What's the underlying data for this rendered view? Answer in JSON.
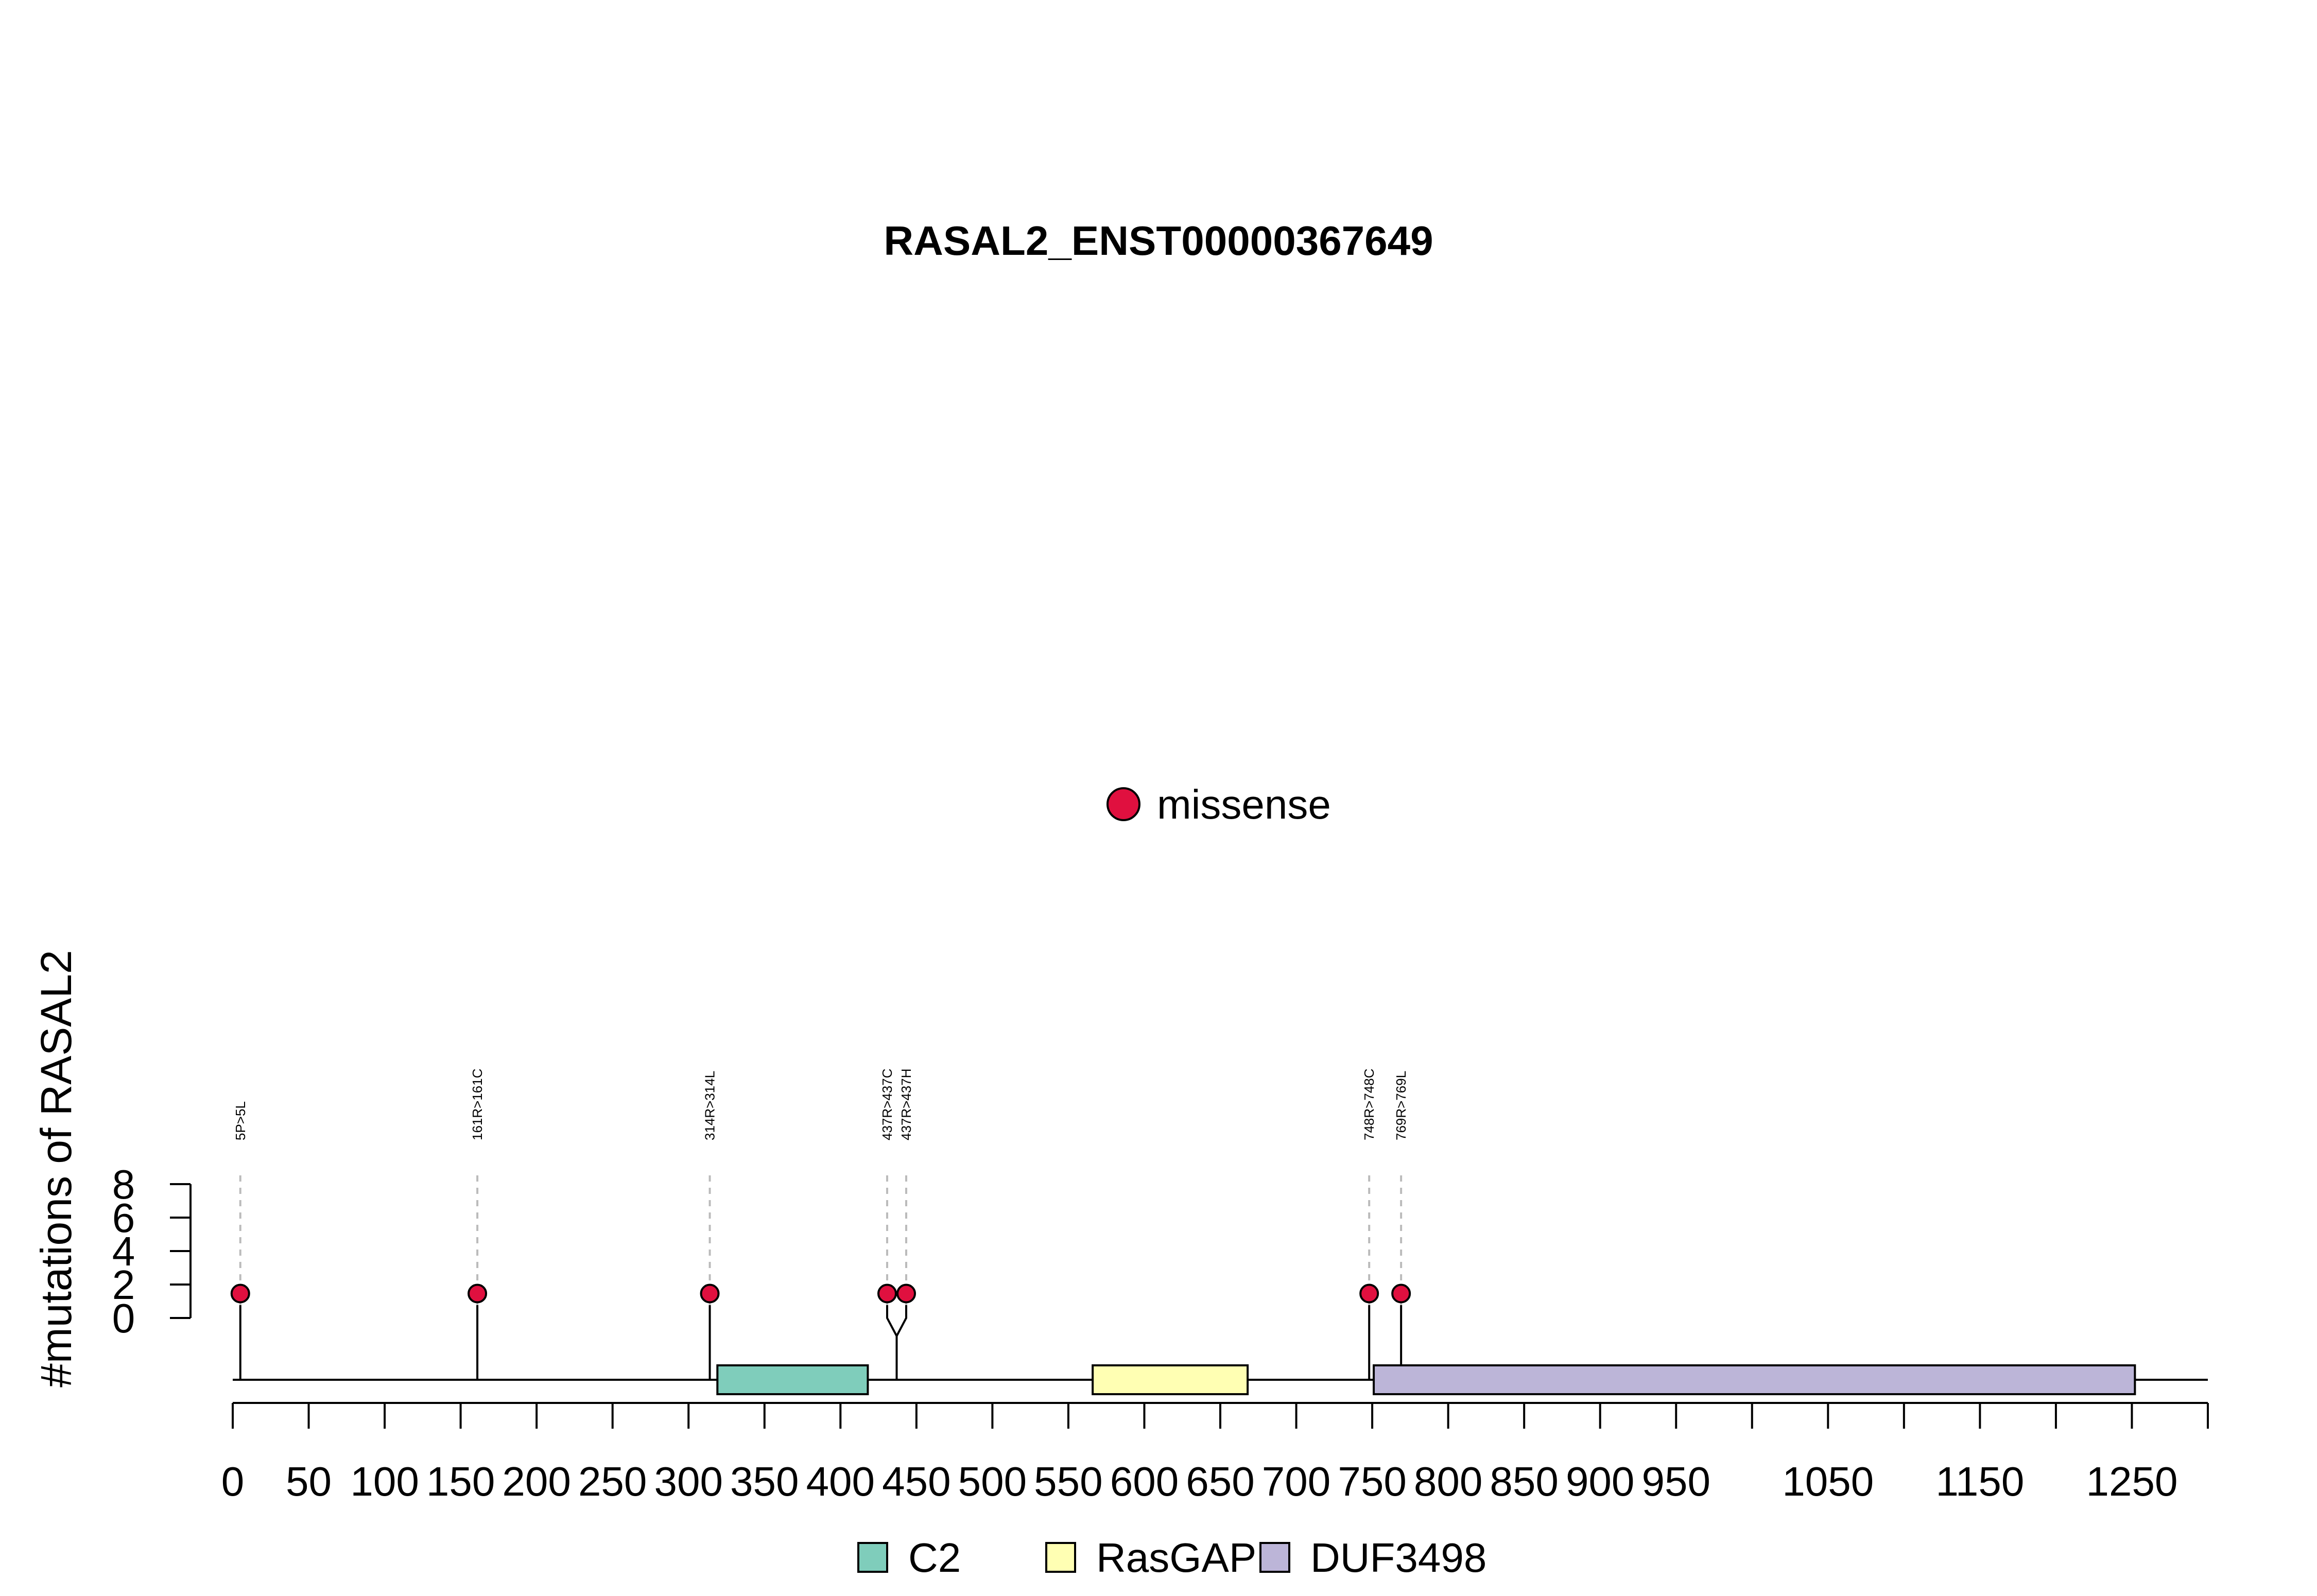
{
  "chart_data": {
    "type": "lollipop",
    "title": "RASAL2_ENST00000367649",
    "ylabel": "#mutations of RASAL2",
    "protein_length": 1300,
    "x_ticks": [
      0,
      50,
      100,
      150,
      200,
      250,
      300,
      350,
      400,
      450,
      500,
      550,
      600,
      650,
      700,
      750,
      800,
      850,
      900,
      950,
      1000,
      1050,
      1100,
      1150,
      1200,
      1250,
      1300
    ],
    "x_tick_labels": [
      "0",
      "50",
      "100",
      "150",
      "200",
      "250",
      "300",
      "350",
      "400",
      "450",
      "500",
      "550",
      "600",
      "650",
      "700",
      "750",
      "800",
      "850",
      "900",
      "950",
      "",
      "1050",
      "",
      "1150",
      "",
      "1250",
      ""
    ],
    "y_ticks": [
      "0",
      "2",
      "4",
      "6",
      "8"
    ],
    "ylim": [
      0,
      8
    ],
    "mutations": [
      {
        "position": 5,
        "count": 1,
        "label": "5P>5L",
        "type": "missense"
      },
      {
        "position": 161,
        "count": 1,
        "label": "161R>161C",
        "type": "missense"
      },
      {
        "position": 314,
        "count": 1,
        "label": "314R>314L",
        "type": "missense"
      },
      {
        "position": 437,
        "count": 1,
        "label": "437R>437C",
        "type": "missense"
      },
      {
        "position": 437,
        "count": 1,
        "label": "437R>437H",
        "type": "missense"
      },
      {
        "position": 748,
        "count": 1,
        "label": "748R>748C",
        "type": "missense"
      },
      {
        "position": 769,
        "count": 1,
        "label": "769R>769L",
        "type": "missense"
      }
    ],
    "domains": [
      {
        "name": "C2",
        "start": 319,
        "end": 418,
        "color": "#7fcdbb"
      },
      {
        "name": "RasGAP",
        "start": 566,
        "end": 668,
        "color": "#ffffb3"
      },
      {
        "name": "DUF3498",
        "start": 751,
        "end": 1252,
        "color": "#bcb5d8"
      }
    ],
    "legend_top": [
      {
        "name": "missense",
        "color": "#e0103f"
      }
    ],
    "legend_bottom": [
      "C2",
      "RasGAP",
      "DUF3498"
    ]
  }
}
